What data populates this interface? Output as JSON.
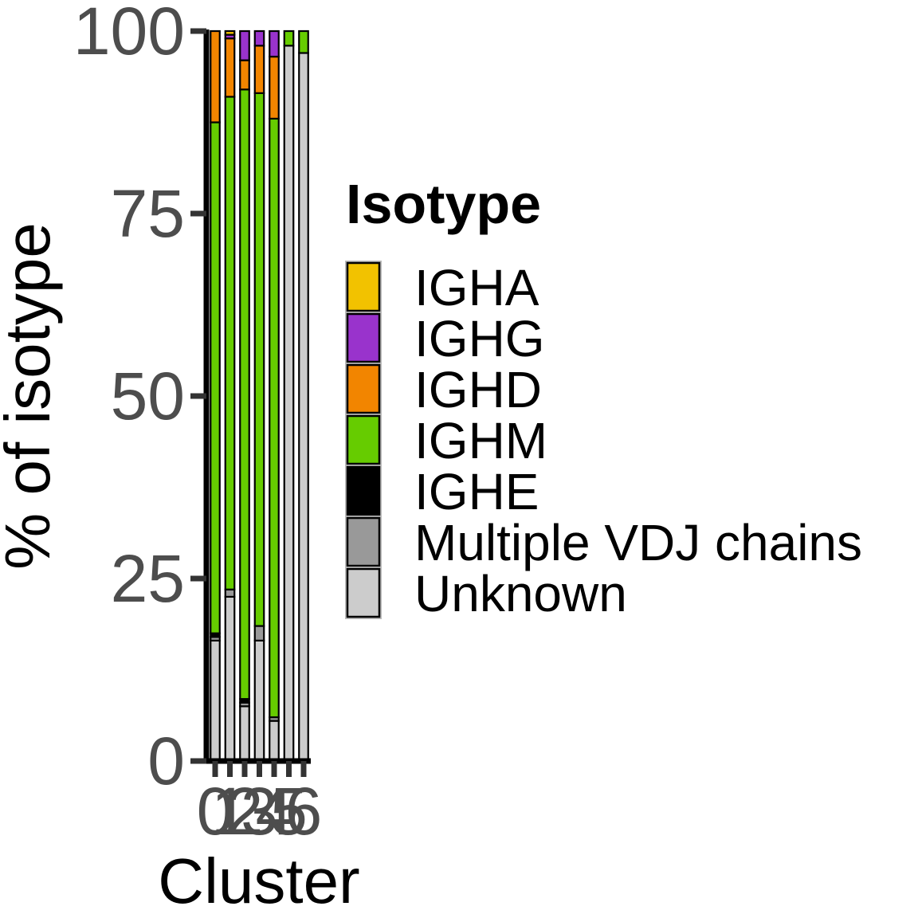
{
  "chart_data": {
    "type": "bar",
    "stacked": true,
    "categories": [
      "0",
      "1",
      "2",
      "3",
      "4",
      "5",
      "6"
    ],
    "xlabel": "Cluster",
    "ylabel": "% of isotype",
    "ylim": [
      0,
      100
    ],
    "yticks": [
      "0",
      "25",
      "50",
      "75",
      "100"
    ],
    "grid": false,
    "legend": {
      "title": "Isotype",
      "position": "right",
      "entries": [
        "IGHA",
        "IGHG",
        "IGHD",
        "IGHM",
        "IGHE",
        "Multiple VDJ chains",
        "Unknown"
      ]
    },
    "stack_order_bottom_to_top": [
      "Unknown",
      "Multiple VDJ chains",
      "IGHE",
      "IGHM",
      "IGHD",
      "IGHG",
      "IGHA"
    ],
    "series": [
      {
        "name": "Unknown",
        "color": "#cccccc",
        "values": [
          16.5,
          22.5,
          7.5,
          16.5,
          5.5,
          98.0,
          97.0
        ]
      },
      {
        "name": "Multiple VDJ chains",
        "color": "#999999",
        "values": [
          0.5,
          1.0,
          0.5,
          2.0,
          0.5,
          0.0,
          0.0
        ]
      },
      {
        "name": "IGHE",
        "color": "#000000",
        "values": [
          0.5,
          0.0,
          0.5,
          0.0,
          0.0,
          0.0,
          0.0
        ]
      },
      {
        "name": "IGHM",
        "color": "#66cc00",
        "values": [
          70.0,
          67.5,
          83.5,
          73.0,
          82.0,
          2.0,
          3.0
        ]
      },
      {
        "name": "IGHD",
        "color": "#f28500",
        "values": [
          12.5,
          8.0,
          4.0,
          6.5,
          8.5,
          0.0,
          0.0
        ]
      },
      {
        "name": "IGHG",
        "color": "#9933cc",
        "values": [
          0.0,
          0.5,
          4.0,
          2.0,
          3.5,
          0.0,
          0.0
        ]
      },
      {
        "name": "IGHA",
        "color": "#f2c200",
        "values": [
          0.0,
          0.5,
          0.0,
          0.0,
          0.0,
          0.0,
          0.0
        ]
      }
    ]
  }
}
